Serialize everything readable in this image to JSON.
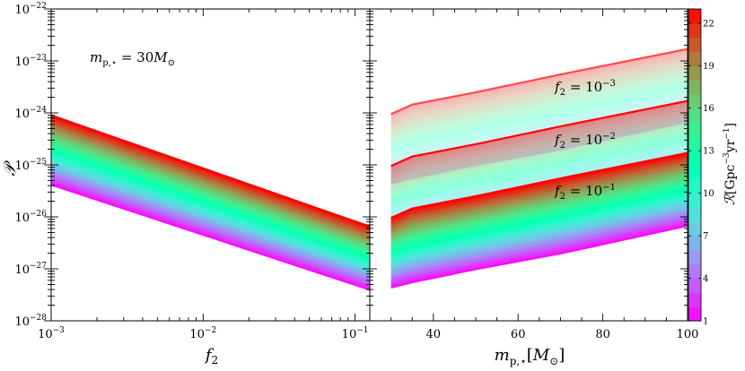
{
  "chart_data": [
    {
      "type": "area",
      "panel": "left",
      "xlabel": "f_2",
      "ylabel": "𝒫",
      "xscale": "log",
      "yscale": "log",
      "xlim": [
        0.001,
        0.125
      ],
      "ylim": [
        1e-28,
        1e-22
      ],
      "x_ticks": [
        {
          "label": "10",
          "exp": "−3",
          "value": 0.001
        },
        {
          "label": "10",
          "exp": "−2",
          "value": 0.01
        },
        {
          "label": "10",
          "exp": "−1",
          "value": 0.1
        }
      ],
      "y_ticks": [
        {
          "label": "10",
          "exp": "−28",
          "value": 1e-28
        },
        {
          "label": "10",
          "exp": "−27",
          "value": 1e-27
        },
        {
          "label": "10",
          "exp": "−26",
          "value": 1e-26
        },
        {
          "label": "10",
          "exp": "−25",
          "value": 1e-25
        },
        {
          "label": "10",
          "exp": "−24",
          "value": 1e-24
        },
        {
          "label": "10",
          "exp": "−23",
          "value": 1e-23
        },
        {
          "label": "10",
          "exp": "−22",
          "value": 1e-22
        }
      ],
      "annotation": "m_{p,⋆} = 30M_⊙",
      "band": {
        "x": [
          0.001,
          0.125
        ],
        "upper": [
          9e-25,
          6.5e-27
        ],
        "lower": [
          4e-26,
          3.8e-28
        ]
      }
    },
    {
      "type": "area",
      "panel": "right",
      "xlabel": "m_{p,⋆}[M_⊙]",
      "xscale": "linear",
      "yscale": "log",
      "xlim": [
        25,
        100
      ],
      "ylim": [
        1e-28,
        1e-22
      ],
      "x_ticks": [
        "40",
        "60",
        "80",
        "100"
      ],
      "bands": [
        {
          "label": "f_2 = 10^{−3}",
          "opacity": 0.3,
          "mass": [
            30,
            35,
            50,
            70,
            100
          ],
          "upper": [
            9.5e-25,
            1.45e-24,
            2.5e-24,
            5.5e-24,
            1.7e-23
          ],
          "lower": [
            4.2e-26,
            5.3e-26,
            9.5e-26,
            1.9e-25,
            6.5e-25
          ]
        },
        {
          "label": "f_2 = 10^{−2}",
          "opacity": 0.45,
          "mass": [
            30,
            35,
            50,
            70,
            100
          ],
          "upper": [
            9.5e-26,
            1.45e-25,
            2.5e-25,
            5.5e-25,
            1.7e-24
          ],
          "lower": [
            4.2e-27,
            5.3e-27,
            9.5e-27,
            1.9e-26,
            6.5e-26
          ]
        },
        {
          "label": "f_2 = 10^{−1}",
          "opacity": 1.0,
          "mass": [
            30,
            35,
            50,
            70,
            100
          ],
          "upper": [
            9.5e-27,
            1.45e-26,
            2.5e-26,
            5.5e-26,
            1.7e-25
          ],
          "lower": [
            4.2e-28,
            5.3e-28,
            9.5e-28,
            1.9e-27,
            6.5e-27
          ]
        }
      ]
    },
    {
      "type": "colorbar",
      "label": "ℛ[Gpc^{−3}yr^{−1}]",
      "range": [
        1,
        23
      ],
      "ticks": [
        "1",
        "4",
        "7",
        "10",
        "13",
        "16",
        "19",
        "22"
      ],
      "tick_values": [
        1,
        4,
        7,
        10,
        13,
        16,
        19,
        22
      ],
      "colormap": "rainbow"
    }
  ]
}
